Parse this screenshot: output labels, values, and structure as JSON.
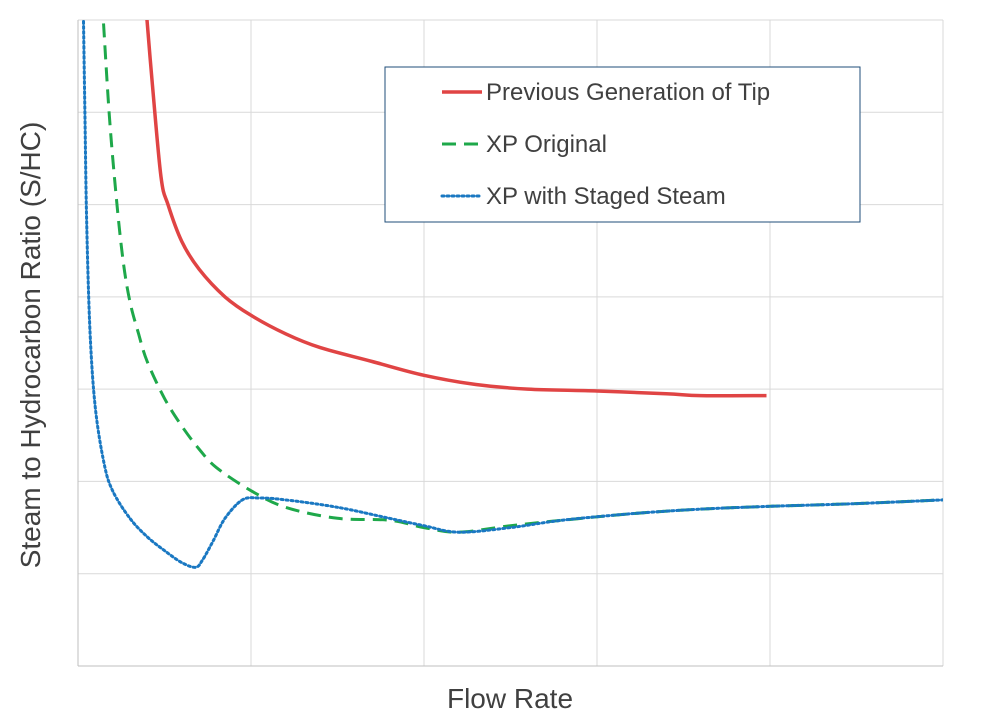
{
  "chart_data": {
    "type": "line",
    "title": "",
    "xlabel": "Flow Rate",
    "ylabel": "Steam to Hydrocarbon Ratio (S/HC)",
    "x_tick_labels": false,
    "y_tick_labels": false,
    "xlim": [
      0,
      5
    ],
    "ylim": [
      0,
      7
    ],
    "grid": true,
    "legend_position": "top-right",
    "series": [
      {
        "name": "Previous Generation of Tip",
        "color": "#e04444",
        "dash": "solid",
        "x": [
          0.39,
          0.43,
          0.48,
          0.52,
          0.6,
          0.7,
          0.85,
          1.0,
          1.2,
          1.4,
          1.7,
          2.0,
          2.3,
          2.6,
          3.0,
          3.4,
          3.6,
          3.98
        ],
        "y": [
          7.2,
          6.3,
          5.3,
          5.0,
          4.6,
          4.3,
          4.0,
          3.8,
          3.6,
          3.45,
          3.3,
          3.15,
          3.05,
          3.0,
          2.98,
          2.95,
          2.93,
          2.93
        ]
      },
      {
        "name": "XP Original",
        "color": "#1ea84a",
        "dash": "dashed",
        "x": [
          0.14,
          0.18,
          0.22,
          0.26,
          0.3,
          0.35,
          0.4,
          0.5,
          0.6,
          0.7,
          0.8,
          1.0,
          1.2,
          1.5,
          1.8,
          2.0,
          2.2,
          2.5,
          2.8,
          3.2,
          3.6,
          4.0,
          4.5,
          5.0
        ],
        "y": [
          7.2,
          6.0,
          5.1,
          4.4,
          3.95,
          3.6,
          3.3,
          2.9,
          2.6,
          2.35,
          2.15,
          1.9,
          1.72,
          1.6,
          1.58,
          1.5,
          1.45,
          1.52,
          1.58,
          1.65,
          1.7,
          1.73,
          1.76,
          1.8
        ]
      },
      {
        "name": "XP with Staged Steam",
        "color": "#1a78c2",
        "dash": "dotted",
        "x": [
          0.03,
          0.04,
          0.05,
          0.07,
          0.1,
          0.15,
          0.2,
          0.3,
          0.4,
          0.5,
          0.6,
          0.68,
          0.72,
          0.78,
          0.85,
          0.95,
          1.05,
          1.2,
          1.5,
          1.8,
          2.0,
          2.2,
          2.5,
          2.8,
          3.2,
          3.6,
          4.0,
          4.5,
          5.0
        ],
        "y": [
          7.2,
          6.0,
          4.8,
          3.6,
          2.8,
          2.2,
          1.9,
          1.6,
          1.4,
          1.25,
          1.12,
          1.07,
          1.15,
          1.35,
          1.6,
          1.8,
          1.82,
          1.8,
          1.72,
          1.6,
          1.52,
          1.45,
          1.5,
          1.58,
          1.65,
          1.7,
          1.73,
          1.76,
          1.8
        ]
      }
    ]
  }
}
